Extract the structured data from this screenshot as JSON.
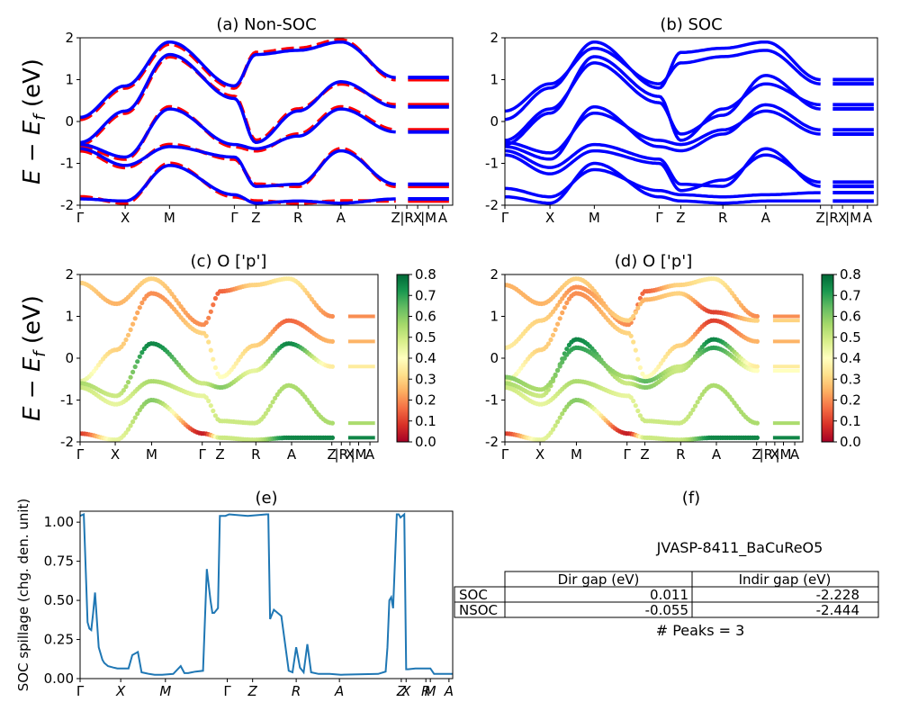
{
  "figure": {
    "id": "JVASP-8411_BaCuReO5"
  },
  "chart_data": [
    {
      "panel": "a",
      "type": "line",
      "title": "(a) Non-SOC",
      "ylabel": "E − E_f (eV)",
      "ylim": [
        -2,
        2
      ],
      "yticks": [
        -2,
        -1,
        0,
        1,
        2
      ],
      "xticks": [
        "Γ",
        "X",
        "M",
        "Γ",
        "Z",
        "R",
        "A",
        "Z",
        "|R",
        "X",
        "|M",
        "A"
      ],
      "series": [
        {
          "color": "#ff0000",
          "style": "dashed",
          "bands": [
            [
              0.05,
              0.8,
              1.85,
              0.8,
              1.65,
              1.75,
              1.95,
              1.0
            ],
            [
              -0.55,
              0.2,
              1.55,
              0.6,
              -0.45,
              0.3,
              0.9,
              0.4
            ],
            [
              -0.6,
              -0.9,
              0.35,
              -0.6,
              -0.7,
              -0.3,
              0.35,
              -0.2
            ],
            [
              -0.7,
              -1.1,
              -0.55,
              -0.9,
              -1.5,
              -1.55,
              -0.65,
              -1.55
            ],
            [
              -1.8,
              -1.95,
              -1.0,
              -1.8,
              -1.9,
              -1.95,
              -1.9,
              -1.9
            ]
          ]
        },
        {
          "color": "#0000ff",
          "style": "solid",
          "bands": [
            [
              0.1,
              0.85,
              1.9,
              0.85,
              1.6,
              1.7,
              1.9,
              1.05
            ],
            [
              -0.5,
              0.25,
              1.6,
              0.55,
              -0.5,
              0.25,
              0.95,
              0.35
            ],
            [
              -0.55,
              -0.85,
              0.3,
              -0.55,
              -0.65,
              -0.35,
              0.3,
              -0.25
            ],
            [
              -0.65,
              -1.05,
              -0.6,
              -0.85,
              -1.55,
              -1.5,
              -0.7,
              -1.5
            ],
            [
              -1.85,
              -1.9,
              -1.05,
              -1.75,
              -1.95,
              -1.9,
              -1.95,
              -1.85
            ]
          ]
        }
      ]
    },
    {
      "panel": "b",
      "type": "line",
      "title": "(b) SOC",
      "ylim": [
        -2,
        2
      ],
      "yticks": [
        -2,
        -1,
        0,
        1,
        2
      ],
      "xticks": [
        "Γ",
        "X",
        "M",
        "Γ",
        "Z",
        "R",
        "A",
        "Z",
        "|R",
        "X",
        "|M",
        "A"
      ],
      "series": [
        {
          "color": "#0000ff",
          "style": "solid",
          "bands": [
            [
              0.05,
              0.8,
              1.9,
              0.8,
              1.65,
              1.75,
              1.9,
              1.0
            ],
            [
              0.25,
              0.9,
              1.75,
              0.9,
              1.4,
              1.55,
              1.7,
              0.9
            ],
            [
              -0.55,
              0.2,
              1.55,
              0.6,
              -0.45,
              0.3,
              0.9,
              0.4
            ],
            [
              -0.45,
              0.3,
              1.4,
              0.45,
              -0.3,
              0.15,
              1.1,
              0.3
            ],
            [
              -0.6,
              -0.9,
              0.35,
              -0.6,
              -0.7,
              -0.3,
              0.4,
              -0.2
            ],
            [
              -0.5,
              -0.75,
              0.2,
              -0.45,
              -0.55,
              -0.2,
              0.25,
              -0.3
            ],
            [
              -0.7,
              -1.1,
              -0.55,
              -0.9,
              -1.5,
              -1.55,
              -0.65,
              -1.55
            ],
            [
              -0.8,
              -1.25,
              -0.7,
              -1.0,
              -1.65,
              -1.4,
              -0.8,
              -1.45
            ],
            [
              -1.8,
              -1.95,
              -1.0,
              -1.8,
              -1.9,
              -1.95,
              -1.9,
              -1.9
            ],
            [
              -1.6,
              -1.8,
              -1.15,
              -1.65,
              -1.75,
              -1.8,
              -1.75,
              -1.7
            ]
          ]
        }
      ]
    },
    {
      "panel": "c",
      "type": "scatter",
      "title": "(c)  O ['p']",
      "ylabel": "E − E_f (eV)",
      "ylim": [
        -2,
        2
      ],
      "yticks": [
        -2,
        -1,
        0,
        1,
        2
      ],
      "xticks": [
        "Γ",
        "X",
        "M",
        "Γ",
        "Z",
        "R",
        "A",
        "Z",
        "|R",
        "X",
        "|M",
        "A"
      ],
      "colorbar": {
        "ticks": [
          "0.0",
          "0.1",
          "0.2",
          "0.3",
          "0.4",
          "0.5",
          "0.6",
          "0.7",
          "0.8"
        ],
        "range": [
          0,
          0.8
        ]
      },
      "bands": [
        {
          "e": [
            1.8,
            1.3,
            1.9,
            0.8,
            1.6,
            1.75,
            1.9,
            1.0
          ],
          "w": [
            0.3,
            0.25,
            0.3,
            0.2,
            0.15,
            0.3,
            0.35,
            0.2
          ]
        },
        {
          "e": [
            -0.55,
            0.2,
            1.55,
            0.6,
            -0.45,
            0.3,
            0.9,
            0.4
          ],
          "w": [
            0.45,
            0.3,
            0.2,
            0.3,
            0.4,
            0.3,
            0.15,
            0.25
          ]
        },
        {
          "e": [
            -0.6,
            -0.9,
            0.35,
            -0.6,
            -0.7,
            -0.3,
            0.35,
            -0.2
          ],
          "w": [
            0.55,
            0.5,
            0.75,
            0.5,
            0.6,
            0.45,
            0.75,
            0.35
          ]
        },
        {
          "e": [
            -0.7,
            -1.1,
            -0.55,
            -0.9,
            -1.5,
            -1.55,
            -0.65,
            -1.55
          ],
          "w": [
            0.5,
            0.45,
            0.55,
            0.45,
            0.5,
            0.5,
            0.55,
            0.55
          ]
        },
        {
          "e": [
            -1.8,
            -1.95,
            -1.0,
            -1.8,
            -1.9,
            -1.95,
            -1.9,
            -1.9
          ],
          "w": [
            0.1,
            0.45,
            0.6,
            0.05,
            0.5,
            0.5,
            0.75,
            0.75
          ]
        }
      ]
    },
    {
      "panel": "d",
      "type": "scatter",
      "title": "(d) O ['p']",
      "ylim": [
        -2,
        2
      ],
      "yticks": [
        -2,
        -1,
        0,
        1,
        2
      ],
      "xticks": [
        "Γ",
        "X",
        "M",
        "Γ",
        "Z",
        "R",
        "A",
        "Z",
        "|R",
        "X",
        "|M",
        "A"
      ],
      "colorbar": {
        "ticks": [
          "0.0",
          "0.1",
          "0.2",
          "0.3",
          "0.4",
          "0.5",
          "0.6",
          "0.7",
          "0.8"
        ],
        "range": [
          0,
          0.8
        ]
      },
      "bands": [
        {
          "e": [
            1.75,
            1.3,
            1.9,
            0.8,
            1.6,
            1.75,
            1.9,
            1.0
          ],
          "w": [
            0.25,
            0.25,
            0.3,
            0.2,
            0.15,
            0.3,
            0.35,
            0.2
          ]
        },
        {
          "e": [
            0.25,
            0.9,
            1.7,
            0.9,
            1.4,
            1.55,
            1.1,
            0.9
          ],
          "w": [
            0.35,
            0.3,
            0.2,
            0.3,
            0.25,
            0.3,
            0.1,
            0.3
          ]
        },
        {
          "e": [
            -0.55,
            0.2,
            1.55,
            0.6,
            -0.45,
            0.3,
            0.9,
            0.4
          ],
          "w": [
            0.45,
            0.3,
            0.2,
            0.3,
            0.4,
            0.3,
            0.1,
            0.25
          ]
        },
        {
          "e": [
            -0.6,
            -0.9,
            0.45,
            -0.6,
            -0.7,
            -0.3,
            0.45,
            -0.2
          ],
          "w": [
            0.55,
            0.5,
            0.75,
            0.5,
            0.6,
            0.5,
            0.75,
            0.35
          ]
        },
        {
          "e": [
            -0.45,
            -0.75,
            0.25,
            -0.45,
            -0.55,
            -0.2,
            0.25,
            -0.3
          ],
          "w": [
            0.6,
            0.55,
            0.7,
            0.55,
            0.65,
            0.5,
            0.7,
            0.4
          ]
        },
        {
          "e": [
            -0.7,
            -1.1,
            -0.55,
            -0.9,
            -1.5,
            -1.55,
            -0.65,
            -1.55
          ],
          "w": [
            0.5,
            0.45,
            0.55,
            0.45,
            0.5,
            0.5,
            0.55,
            0.55
          ]
        },
        {
          "e": [
            -1.8,
            -1.95,
            -1.0,
            -1.8,
            -1.9,
            -1.95,
            -1.9,
            -1.9
          ],
          "w": [
            0.1,
            0.45,
            0.6,
            0.05,
            0.5,
            0.5,
            0.75,
            0.75
          ]
        }
      ]
    },
    {
      "panel": "e",
      "type": "line",
      "title": "(e)",
      "ylabel": "SOC spillage (chg. den. unit)",
      "ylim": [
        0,
        1.07
      ],
      "yticks": [
        "0.00",
        "0.25",
        "0.50",
        "0.75",
        "1.00"
      ],
      "xticks": [
        "Γ",
        "X",
        "M",
        "Γ",
        "Z",
        "R",
        "A",
        "Z",
        "X",
        "R",
        "M",
        "A"
      ],
      "color": "#1f77b4",
      "x": [
        0,
        0.01,
        0.02,
        0.025,
        0.03,
        0.035,
        0.04,
        0.05,
        0.06,
        0.065,
        0.075,
        0.09,
        0.1,
        0.11,
        0.13,
        0.14,
        0.155,
        0.165,
        0.175,
        0.185,
        0.2,
        0.22,
        0.25,
        0.27,
        0.28,
        0.29,
        0.3,
        0.31,
        0.33,
        0.34,
        0.35,
        0.355,
        0.36,
        0.37,
        0.375,
        0.38,
        0.385,
        0.39,
        0.4,
        0.45,
        0.5,
        0.505,
        0.51,
        0.52,
        0.54,
        0.56,
        0.57,
        0.58,
        0.59,
        0.6,
        0.61,
        0.62,
        0.64,
        0.65,
        0.66,
        0.67,
        0.7,
        0.8,
        0.82,
        0.825,
        0.83,
        0.835,
        0.84,
        0.85,
        0.855,
        0.86,
        0.87,
        0.875,
        0.88,
        0.9,
        0.94,
        0.95,
        1.0
      ],
      "y": [
        1.04,
        1.05,
        0.36,
        0.32,
        0.31,
        0.42,
        0.55,
        0.2,
        0.12,
        0.1,
        0.08,
        0.07,
        0.065,
        0.065,
        0.065,
        0.15,
        0.17,
        0.04,
        0.035,
        0.03,
        0.025,
        0.025,
        0.03,
        0.08,
        0.035,
        0.035,
        0.04,
        0.045,
        0.05,
        0.7,
        0.5,
        0.42,
        0.42,
        0.45,
        1.04,
        1.04,
        1.04,
        1.04,
        1.05,
        1.04,
        1.05,
        1.05,
        0.38,
        0.44,
        0.4,
        0.05,
        0.04,
        0.2,
        0.07,
        0.04,
        0.22,
        0.04,
        0.03,
        0.03,
        0.03,
        0.03,
        0.025,
        0.03,
        0.045,
        0.2,
        0.5,
        0.52,
        0.45,
        1.05,
        1.05,
        1.03,
        1.05,
        0.06,
        0.06,
        0.065,
        0.065,
        0.03,
        0.03
      ]
    }
  ],
  "panel_f": {
    "title": "(f)",
    "material": "JVASP-8411_BaCuReO5",
    "col_headers": [
      "",
      "Dir gap (eV)",
      "Indir gap (eV)"
    ],
    "rows": [
      [
        "SOC",
        "0.011",
        "-2.228"
      ],
      [
        "NSOC",
        "-0.055",
        "-2.444"
      ]
    ],
    "peaks": "# Peaks = 3"
  }
}
